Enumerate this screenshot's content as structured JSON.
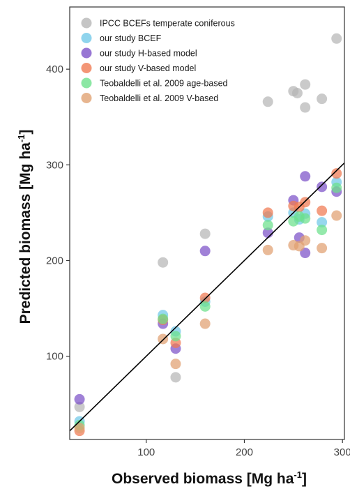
{
  "chart_data": {
    "type": "scatter",
    "xlabel": "Observed biomass [Mg ha",
    "ylabel": "Predicted biomass [Mg ha",
    "unit_superscript": "-1",
    "unit_close": "]",
    "xlim": [
      22,
      302
    ],
    "ylim": [
      13,
      465
    ],
    "x_ticks": [
      100,
      200,
      300
    ],
    "y_ticks": [
      100,
      200,
      300,
      400
    ],
    "grid": false,
    "legend_position": "top-left inside",
    "reference_line": {
      "type": "1:1",
      "color": "#000000"
    },
    "series": [
      {
        "name": "IPCC BCEFs temperate coniferous",
        "color": "#b5b5b5",
        "points": [
          [
            32,
            47
          ],
          [
            117,
            198
          ],
          [
            130,
            78
          ],
          [
            160,
            228
          ],
          [
            224,
            366
          ],
          [
            250,
            377
          ],
          [
            254,
            375
          ],
          [
            262,
            384
          ],
          [
            262,
            360
          ],
          [
            279,
            369
          ],
          [
            294,
            432
          ]
        ]
      },
      {
        "name": "our study BCEF",
        "color": "#6fc8e8",
        "points": [
          [
            32,
            32
          ],
          [
            117,
            143
          ],
          [
            130,
            126
          ],
          [
            160,
            157
          ],
          [
            224,
            246
          ],
          [
            250,
            250
          ],
          [
            256,
            243
          ],
          [
            262,
            249
          ],
          [
            279,
            240
          ],
          [
            294,
            282
          ]
        ]
      },
      {
        "name": "our study H-based model",
        "color": "#7b50c8",
        "points": [
          [
            32,
            55
          ],
          [
            117,
            134
          ],
          [
            130,
            108
          ],
          [
            160,
            210
          ],
          [
            224,
            229
          ],
          [
            250,
            263
          ],
          [
            256,
            224
          ],
          [
            262,
            288
          ],
          [
            262,
            208
          ],
          [
            279,
            277
          ],
          [
            294,
            272
          ]
        ]
      },
      {
        "name": "our study V-based model",
        "color": "#f07850",
        "points": [
          [
            32,
            22
          ],
          [
            117,
            138
          ],
          [
            130,
            114
          ],
          [
            160,
            161
          ],
          [
            224,
            250
          ],
          [
            250,
            257
          ],
          [
            256,
            256
          ],
          [
            262,
            261
          ],
          [
            279,
            252
          ],
          [
            294,
            291
          ]
        ]
      },
      {
        "name": "Teobaldelli et al. 2009 age-based",
        "color": "#6be08a",
        "points": [
          [
            32,
            28
          ],
          [
            117,
            139
          ],
          [
            130,
            121
          ],
          [
            160,
            152
          ],
          [
            224,
            237
          ],
          [
            250,
            241
          ],
          [
            256,
            246
          ],
          [
            262,
            244
          ],
          [
            279,
            232
          ],
          [
            294,
            276
          ]
        ]
      },
      {
        "name": "Teobaldelli et al. 2009 V-based",
        "color": "#e0a070",
        "points": [
          [
            32,
            25
          ],
          [
            117,
            118
          ],
          [
            130,
            92
          ],
          [
            160,
            134
          ],
          [
            224,
            211
          ],
          [
            250,
            216
          ],
          [
            256,
            215
          ],
          [
            262,
            221
          ],
          [
            279,
            213
          ],
          [
            294,
            247
          ]
        ]
      }
    ]
  }
}
